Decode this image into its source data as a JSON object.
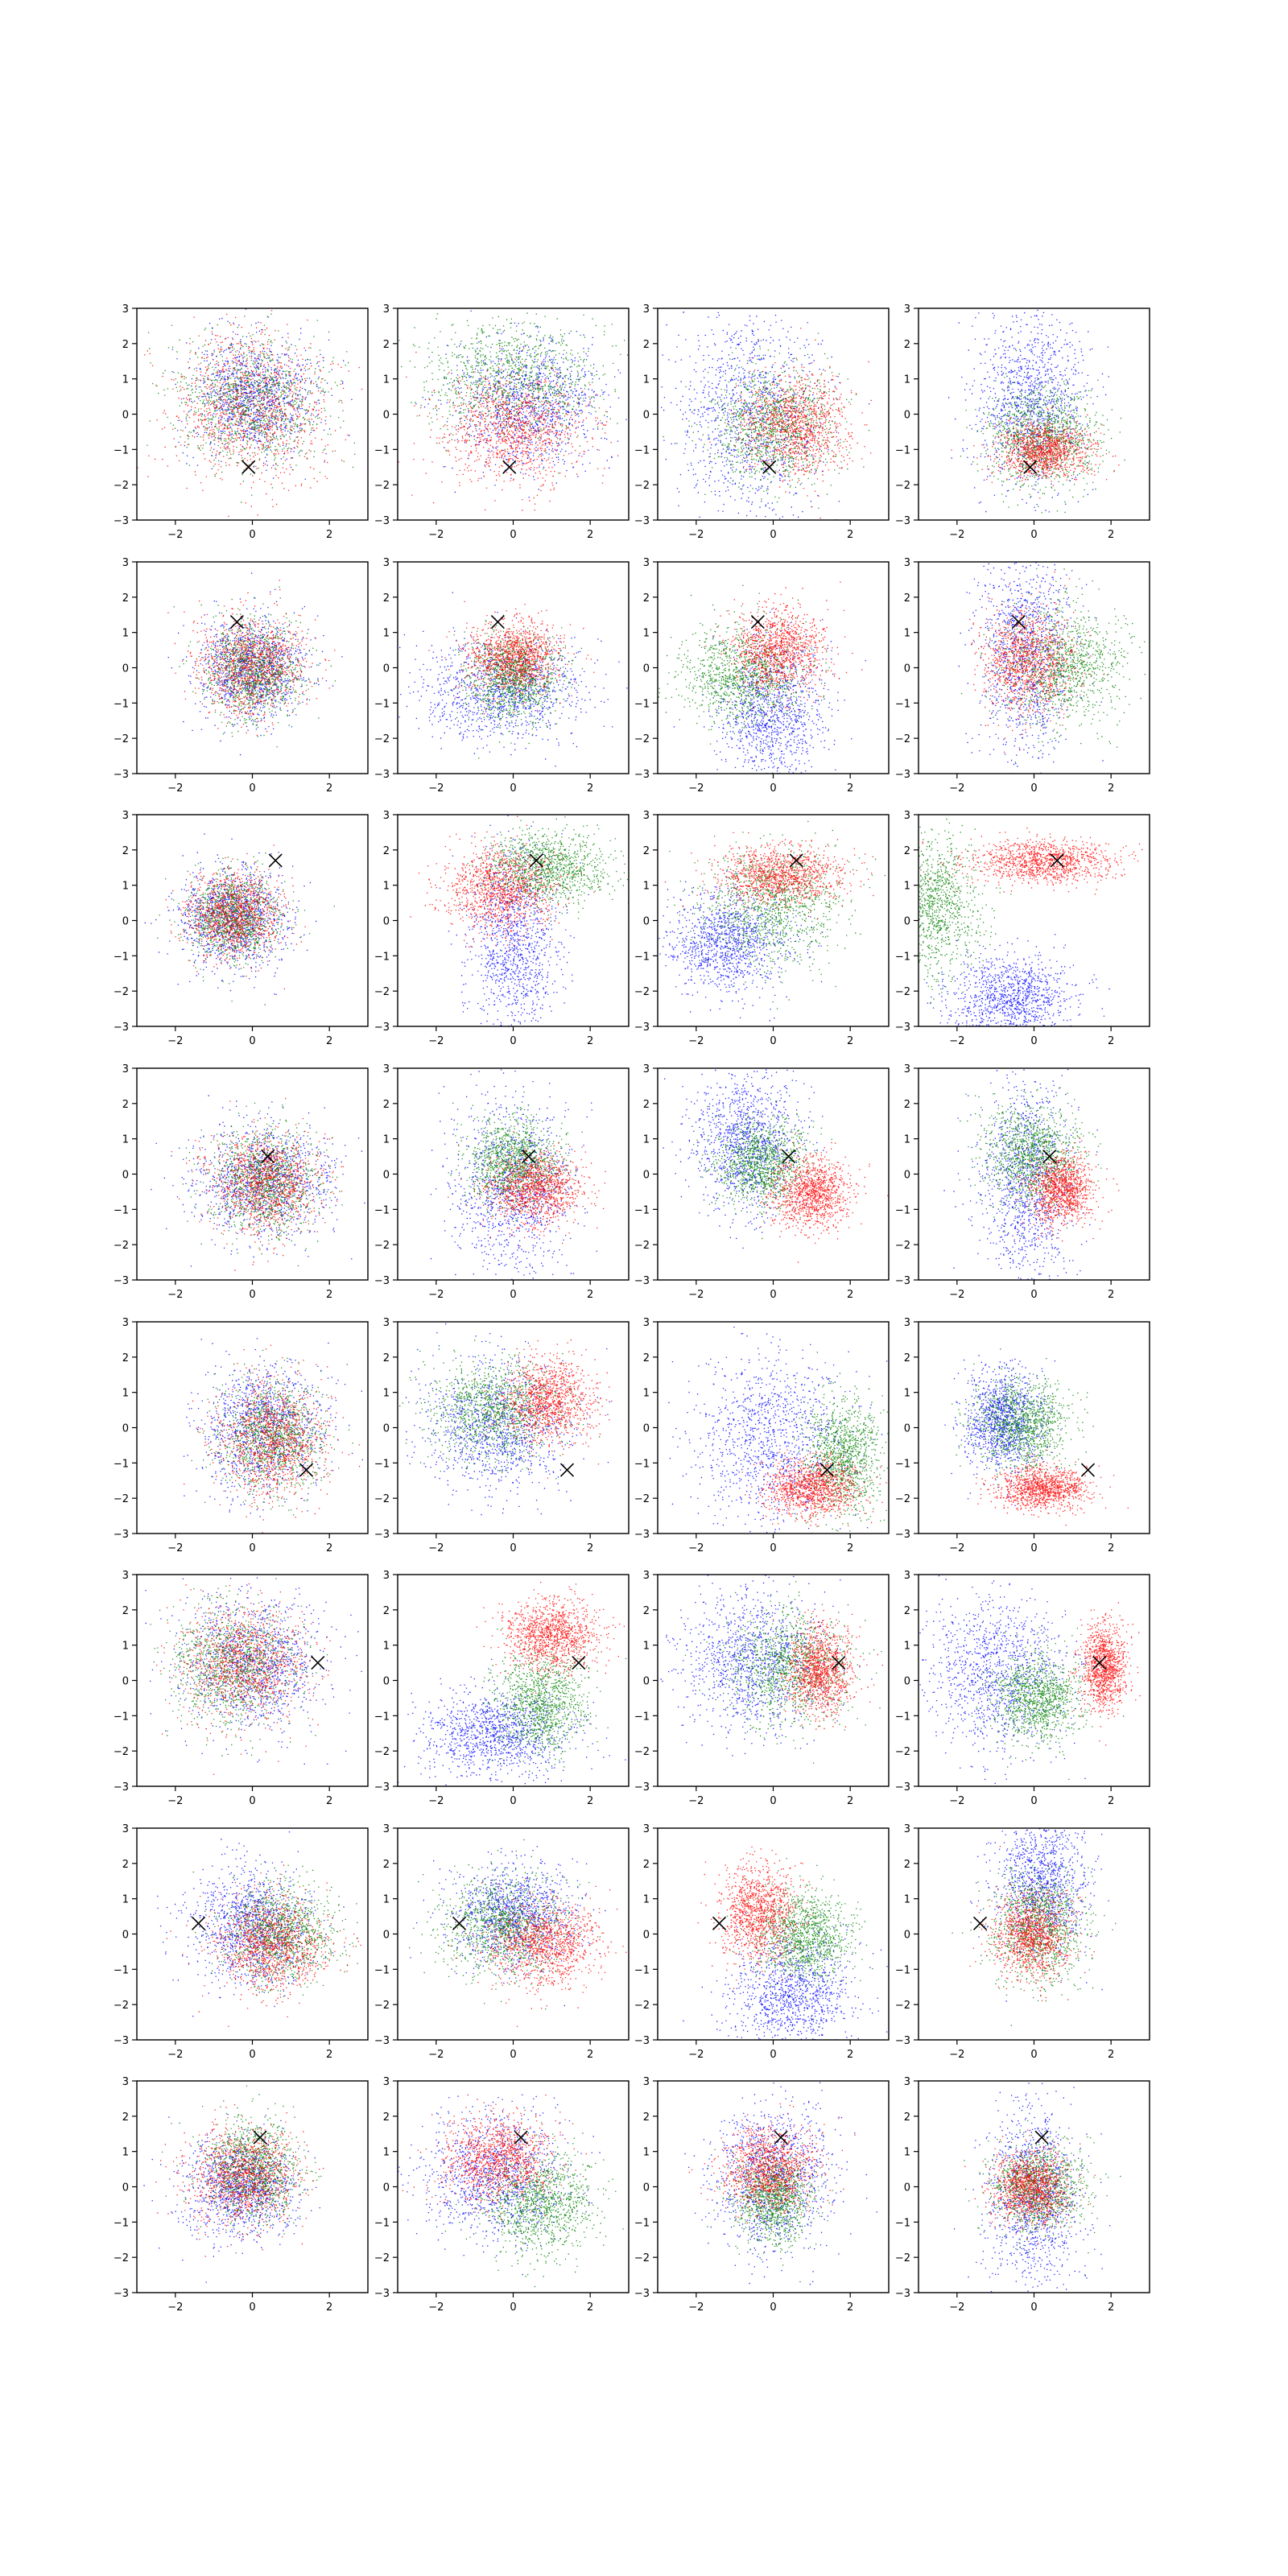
{
  "figure": {
    "rows": 8,
    "cols": 4,
    "series_colors": [
      "#0000ff",
      "#008000",
      "#ff0000"
    ],
    "marker_color": "#000000",
    "point_density": 1100
  },
  "chart_data": {
    "type": "scatter",
    "xlim": [
      -3,
      3
    ],
    "ylim": [
      -3,
      3
    ],
    "xticks": [
      -2,
      0,
      2
    ],
    "yticks": [
      -3,
      -2,
      -1,
      0,
      1,
      2,
      3
    ],
    "grid": false,
    "legend": "none",
    "markers": [
      {
        "x": -0.1,
        "y": -1.5
      },
      {
        "x": -0.4,
        "y": 1.3
      },
      {
        "x": 0.6,
        "y": 1.7
      },
      {
        "x": 0.4,
        "y": 0.5
      },
      {
        "x": 1.4,
        "y": -1.2
      },
      {
        "x": 1.7,
        "y": 0.5
      },
      {
        "x": -1.4,
        "y": 0.3
      },
      {
        "x": 0.2,
        "y": 1.4
      }
    ],
    "panels": [
      [
        [
          {
            "cx": 0.0,
            "cy": 0.5,
            "sx": 0.8,
            "sy": 0.8
          },
          {
            "cx": 0.0,
            "cy": 0.3,
            "sx": 1.0,
            "sy": 0.9
          },
          {
            "cx": 0.0,
            "cy": 0.2,
            "sx": 1.0,
            "sy": 1.0
          }
        ],
        [
          {
            "cx": 0.4,
            "cy": 0.3,
            "sx": 1.0,
            "sy": 0.9
          },
          {
            "cx": 0.0,
            "cy": 1.0,
            "sx": 1.1,
            "sy": 0.8
          },
          {
            "cx": 0.0,
            "cy": -0.4,
            "sx": 0.9,
            "sy": 0.8
          }
        ],
        [
          {
            "cx": -0.6,
            "cy": 0.0,
            "sx": 1.0,
            "sy": 1.6
          },
          {
            "cx": 0.0,
            "cy": -0.3,
            "sx": 0.8,
            "sy": 0.8
          },
          {
            "cx": 0.6,
            "cy": -0.3,
            "sx": 0.7,
            "sy": 0.7
          }
        ],
        [
          {
            "cx": -0.1,
            "cy": 0.4,
            "sx": 0.7,
            "sy": 1.2
          },
          {
            "cx": 0.2,
            "cy": -0.6,
            "sx": 0.7,
            "sy": 0.7
          },
          {
            "cx": 0.3,
            "cy": -1.0,
            "sx": 0.6,
            "sy": 0.4
          }
        ]
      ],
      [
        [
          {
            "cx": 0.0,
            "cy": 0.0,
            "sx": 0.7,
            "sy": 0.7
          },
          {
            "cx": 0.0,
            "cy": 0.0,
            "sx": 0.6,
            "sy": 0.7
          },
          {
            "cx": 0.0,
            "cy": 0.1,
            "sx": 0.7,
            "sy": 0.7
          }
        ],
        [
          {
            "cx": -0.2,
            "cy": -0.6,
            "sx": 1.1,
            "sy": 0.7
          },
          {
            "cx": 0.0,
            "cy": -0.3,
            "sx": 0.6,
            "sy": 0.6
          },
          {
            "cx": 0.0,
            "cy": 0.3,
            "sx": 0.6,
            "sy": 0.5
          }
        ],
        [
          {
            "cx": 0.0,
            "cy": -1.3,
            "sx": 0.7,
            "sy": 1.0
          },
          {
            "cx": -0.8,
            "cy": -0.2,
            "sx": 0.8,
            "sy": 0.7
          },
          {
            "cx": 0.1,
            "cy": 0.5,
            "sx": 0.6,
            "sy": 0.6
          }
        ],
        [
          {
            "cx": -0.2,
            "cy": 0.4,
            "sx": 0.6,
            "sy": 1.5
          },
          {
            "cx": 0.8,
            "cy": 0.1,
            "sx": 0.8,
            "sy": 0.8
          },
          {
            "cx": -0.2,
            "cy": 0.2,
            "sx": 0.6,
            "sy": 0.7
          }
        ]
      ],
      [
        [
          {
            "cx": -0.5,
            "cy": 0.1,
            "sx": 0.7,
            "sy": 0.7
          },
          {
            "cx": -0.5,
            "cy": 0.1,
            "sx": 0.6,
            "sy": 0.6
          },
          {
            "cx": -0.5,
            "cy": 0.2,
            "sx": 0.6,
            "sy": 0.6
          }
        ],
        [
          {
            "cx": 0.0,
            "cy": -0.6,
            "sx": 0.6,
            "sy": 1.3
          },
          {
            "cx": 0.9,
            "cy": 1.5,
            "sx": 0.8,
            "sy": 0.5
          },
          {
            "cx": -0.3,
            "cy": 0.9,
            "sx": 0.7,
            "sy": 0.6
          }
        ],
        [
          {
            "cx": -1.2,
            "cy": -0.6,
            "sx": 0.8,
            "sy": 0.7
          },
          {
            "cx": 0.0,
            "cy": 0.4,
            "sx": 0.9,
            "sy": 0.8
          },
          {
            "cx": 0.2,
            "cy": 1.3,
            "sx": 0.8,
            "sy": 0.4
          }
        ],
        [
          {
            "cx": -0.6,
            "cy": -2.2,
            "sx": 0.8,
            "sy": 0.6
          },
          {
            "cx": -2.6,
            "cy": 0.4,
            "sx": 0.6,
            "sy": 1.0
          },
          {
            "cx": 0.3,
            "cy": 1.7,
            "sx": 0.9,
            "sy": 0.3
          }
        ]
      ],
      [
        [
          {
            "cx": 0.3,
            "cy": -0.2,
            "sx": 0.9,
            "sy": 0.8
          },
          {
            "cx": 0.3,
            "cy": -0.2,
            "sx": 0.7,
            "sy": 0.7
          },
          {
            "cx": 0.3,
            "cy": -0.2,
            "sx": 0.7,
            "sy": 0.7
          }
        ],
        [
          {
            "cx": 0.0,
            "cy": -0.3,
            "sx": 0.8,
            "sy": 1.2
          },
          {
            "cx": 0.0,
            "cy": 0.4,
            "sx": 0.6,
            "sy": 0.6
          },
          {
            "cx": 0.6,
            "cy": -0.4,
            "sx": 0.6,
            "sy": 0.5
          }
        ],
        [
          {
            "cx": -0.7,
            "cy": 0.9,
            "sx": 0.7,
            "sy": 1.0
          },
          {
            "cx": -0.3,
            "cy": 0.3,
            "sx": 0.6,
            "sy": 0.6
          },
          {
            "cx": 1.0,
            "cy": -0.5,
            "sx": 0.5,
            "sy": 0.5
          }
        ],
        [
          {
            "cx": -0.2,
            "cy": -0.2,
            "sx": 0.6,
            "sy": 1.5
          },
          {
            "cx": -0.1,
            "cy": 0.6,
            "sx": 0.6,
            "sy": 0.7
          },
          {
            "cx": 0.7,
            "cy": -0.4,
            "sx": 0.4,
            "sy": 0.5
          }
        ]
      ],
      [
        [
          {
            "cx": 0.3,
            "cy": 0.0,
            "sx": 0.8,
            "sy": 0.9
          },
          {
            "cx": 0.5,
            "cy": -0.2,
            "sx": 0.7,
            "sy": 0.8
          },
          {
            "cx": 0.5,
            "cy": -0.3,
            "sx": 0.7,
            "sy": 0.8
          }
        ],
        [
          {
            "cx": -0.5,
            "cy": 0.0,
            "sx": 0.9,
            "sy": 0.9
          },
          {
            "cx": -0.5,
            "cy": 0.5,
            "sx": 0.8,
            "sy": 0.7
          },
          {
            "cx": 0.9,
            "cy": 0.8,
            "sx": 0.6,
            "sy": 0.6
          }
        ],
        [
          {
            "cx": 0.0,
            "cy": -0.3,
            "sx": 1.0,
            "sy": 1.2
          },
          {
            "cx": 1.8,
            "cy": -0.8,
            "sx": 0.5,
            "sy": 0.8
          },
          {
            "cx": 1.0,
            "cy": -1.7,
            "sx": 0.6,
            "sy": 0.4
          }
        ],
        [
          {
            "cx": -0.8,
            "cy": 0.2,
            "sx": 0.5,
            "sy": 0.7
          },
          {
            "cx": -0.3,
            "cy": 0.1,
            "sx": 0.6,
            "sy": 0.6
          },
          {
            "cx": 0.2,
            "cy": -1.7,
            "sx": 0.6,
            "sy": 0.3
          }
        ]
      ],
      [
        [
          {
            "cx": 0.0,
            "cy": 0.5,
            "sx": 0.9,
            "sy": 0.9
          },
          {
            "cx": -0.5,
            "cy": 0.5,
            "sx": 0.8,
            "sy": 0.8
          },
          {
            "cx": -0.2,
            "cy": 0.5,
            "sx": 0.8,
            "sy": 0.8
          }
        ],
        [
          {
            "cx": -0.5,
            "cy": -1.5,
            "sx": 1.0,
            "sy": 0.6
          },
          {
            "cx": 0.7,
            "cy": -0.6,
            "sx": 0.6,
            "sy": 0.7
          },
          {
            "cx": 1.0,
            "cy": 1.3,
            "sx": 0.6,
            "sy": 0.5
          }
        ],
        [
          {
            "cx": -0.6,
            "cy": 0.6,
            "sx": 0.9,
            "sy": 1.0
          },
          {
            "cx": 0.4,
            "cy": 0.4,
            "sx": 0.8,
            "sy": 0.8
          },
          {
            "cx": 1.2,
            "cy": 0.3,
            "sx": 0.4,
            "sy": 0.6
          }
        ],
        [
          {
            "cx": -1.0,
            "cy": 0.2,
            "sx": 0.9,
            "sy": 1.1
          },
          {
            "cx": 0.1,
            "cy": -0.5,
            "sx": 0.6,
            "sy": 0.6
          },
          {
            "cx": 1.8,
            "cy": 0.4,
            "sx": 0.3,
            "sy": 0.6
          }
        ]
      ],
      [
        [
          {
            "cx": 0.0,
            "cy": 0.2,
            "sx": 0.8,
            "sy": 0.8
          },
          {
            "cx": 0.7,
            "cy": 0.0,
            "sx": 0.7,
            "sy": 0.7
          },
          {
            "cx": 0.5,
            "cy": -0.3,
            "sx": 0.7,
            "sy": 0.7
          }
        ],
        [
          {
            "cx": 0.0,
            "cy": 0.6,
            "sx": 0.8,
            "sy": 0.7
          },
          {
            "cx": -0.3,
            "cy": 0.3,
            "sx": 0.8,
            "sy": 0.7
          },
          {
            "cx": 0.8,
            "cy": -0.3,
            "sx": 0.7,
            "sy": 0.6
          }
        ],
        [
          {
            "cx": 0.5,
            "cy": -1.7,
            "sx": 0.8,
            "sy": 0.8
          },
          {
            "cx": 0.8,
            "cy": 0.0,
            "sx": 0.6,
            "sy": 0.6
          },
          {
            "cx": -0.4,
            "cy": 0.6,
            "sx": 0.5,
            "sy": 0.7
          }
        ],
        [
          {
            "cx": 0.2,
            "cy": 1.5,
            "sx": 0.6,
            "sy": 1.0
          },
          {
            "cx": 0.1,
            "cy": 0.2,
            "sx": 0.6,
            "sy": 0.8
          },
          {
            "cx": -0.1,
            "cy": 0.0,
            "sx": 0.5,
            "sy": 0.6
          }
        ]
      ],
      [
        [
          {
            "cx": -0.3,
            "cy": 0.0,
            "sx": 0.7,
            "sy": 0.7
          },
          {
            "cx": 0.0,
            "cy": 0.5,
            "sx": 0.6,
            "sy": 0.7
          },
          {
            "cx": -0.2,
            "cy": 0.3,
            "sx": 0.7,
            "sy": 0.7
          }
        ],
        [
          {
            "cx": -0.5,
            "cy": 0.3,
            "sx": 0.9,
            "sy": 0.9
          },
          {
            "cx": 0.7,
            "cy": -0.5,
            "sx": 0.7,
            "sy": 0.7
          },
          {
            "cx": -0.4,
            "cy": 0.8,
            "sx": 0.7,
            "sy": 0.6
          }
        ],
        [
          {
            "cx": 0.0,
            "cy": 0.3,
            "sx": 0.8,
            "sy": 1.1
          },
          {
            "cx": 0.0,
            "cy": -0.3,
            "sx": 0.5,
            "sy": 0.6
          },
          {
            "cx": -0.1,
            "cy": 0.5,
            "sx": 0.6,
            "sy": 0.6
          }
        ],
        [
          {
            "cx": 0.0,
            "cy": -0.3,
            "sx": 0.6,
            "sy": 1.3
          },
          {
            "cx": 0.1,
            "cy": 0.0,
            "sx": 0.6,
            "sy": 0.6
          },
          {
            "cx": -0.1,
            "cy": 0.0,
            "sx": 0.5,
            "sy": 0.5
          }
        ]
      ]
    ]
  }
}
